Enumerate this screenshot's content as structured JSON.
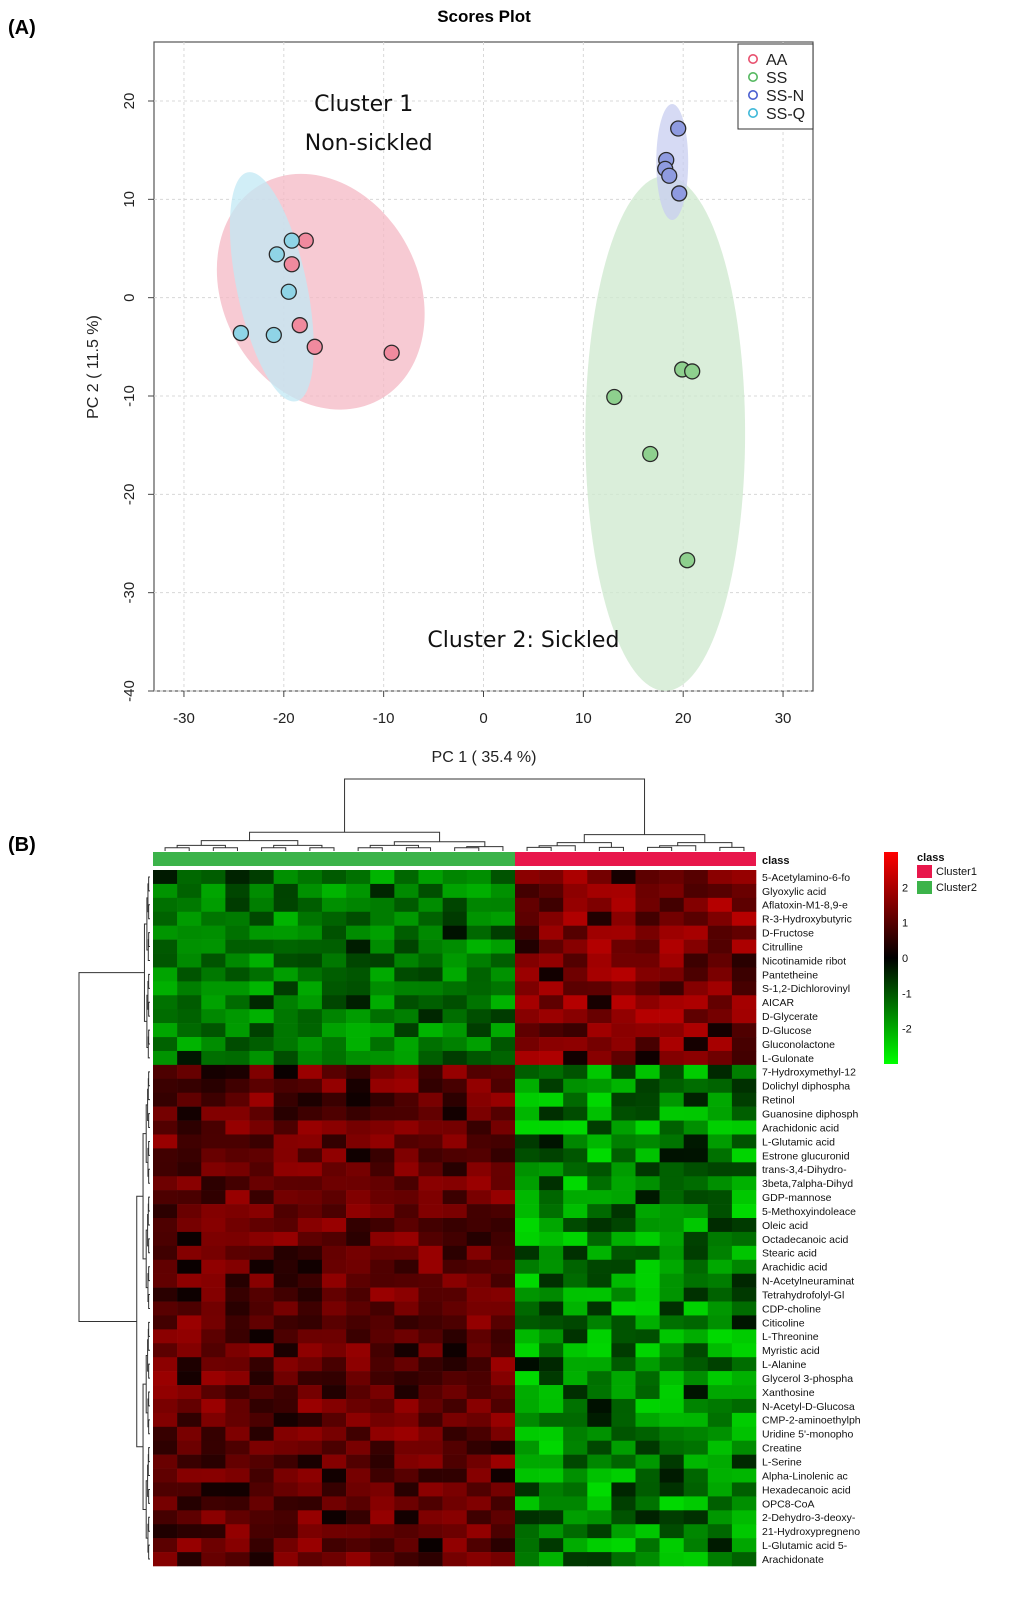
{
  "panel_a_label": "(A)",
  "panel_b_label": "(B)",
  "chart_data": [
    {
      "type": "scatter",
      "title": "Scores Plot",
      "xlabel": "PC 1 ( 35.4 %)",
      "ylabel": "PC 2 ( 11.5 %)",
      "xlim": [
        -33,
        33
      ],
      "ylim": [
        -40,
        26
      ],
      "xticks": [
        -30,
        -20,
        -10,
        0,
        10,
        20,
        30
      ],
      "yticks": [
        -40,
        -30,
        -20,
        -10,
        0,
        10,
        20
      ],
      "grid": true,
      "legend": "top-right",
      "annotations": [
        {
          "text": "Cluster 1",
          "x": -12,
          "y": 19
        },
        {
          "text": "Non-sickled",
          "x": -11.5,
          "y": 15
        },
        {
          "text": "Cluster 2: Sickled",
          "x": 4,
          "y": -35.5
        }
      ],
      "series": [
        {
          "name": "AA",
          "color": "#e8506e",
          "fill": "#f08a9e",
          "ellipse_fill": "#f4b8c4",
          "ellipse": {
            "cx": -16.3,
            "cy": 0.6,
            "rx": 9.8,
            "ry": 12.5,
            "angle_deg": -28
          },
          "points": [
            [
              -17.8,
              5.8
            ],
            [
              -19.2,
              3.4
            ],
            [
              -18.4,
              -2.8
            ],
            [
              -16.9,
              -5.0
            ],
            [
              -9.2,
              -5.6
            ]
          ]
        },
        {
          "name": "SS",
          "color": "#55b860",
          "fill": "#8ed08e",
          "ellipse_fill": "#cde8cd",
          "ellipse": {
            "cx": 18.2,
            "cy": -13.8,
            "rx": 8.0,
            "ry": 26.2,
            "angle_deg": 0
          },
          "points": [
            [
              19.9,
              -7.3
            ],
            [
              20.9,
              -7.5
            ],
            [
              13.1,
              -10.1
            ],
            [
              16.7,
              -15.9
            ],
            [
              20.4,
              -26.7
            ]
          ]
        },
        {
          "name": "SS-N",
          "color": "#4a5fd0",
          "fill": "#8f9be0",
          "ellipse_fill": "#c8cdf0",
          "ellipse": {
            "cx": 18.9,
            "cy": 13.8,
            "rx": 1.6,
            "ry": 5.9,
            "angle_deg": 0
          },
          "points": [
            [
              19.5,
              17.2
            ],
            [
              18.3,
              14.0
            ],
            [
              18.2,
              13.1
            ],
            [
              18.6,
              12.4
            ],
            [
              19.6,
              10.6
            ]
          ]
        },
        {
          "name": "SS-Q",
          "color": "#3fb8d8",
          "fill": "#8fd4e6",
          "ellipse_fill": "#c2e8f4",
          "ellipse": {
            "cx": -21.2,
            "cy": 1.1,
            "rx": 3.5,
            "ry": 11.9,
            "angle_deg": -12
          },
          "points": [
            [
              -19.2,
              5.8
            ],
            [
              -20.7,
              4.4
            ],
            [
              -19.5,
              0.6
            ],
            [
              -24.3,
              -3.6
            ],
            [
              -21.0,
              -3.8
            ]
          ]
        }
      ]
    },
    {
      "type": "heatmap",
      "class_label": "class",
      "legend_title": "class",
      "classes": [
        {
          "name": "Cluster1",
          "color": "#e8174b"
        },
        {
          "name": "Cluster2",
          "color": "#3cb34a"
        }
      ],
      "color_scale": {
        "min": -3,
        "max": 3,
        "ticks": [
          2,
          1,
          0,
          -1,
          -2
        ],
        "low": "#00ff00",
        "mid": "#000000",
        "high": "#ff0000"
      },
      "n_cluster2_samples": 15,
      "n_cluster1_samples": 10,
      "rows": [
        "5-Acetylamino-6-fo",
        "Glyoxylic acid",
        "Aflatoxin-M1-8,9-e",
        "R-3-Hydroxybutyric",
        "D-Fructose",
        "Citrulline",
        "Nicotinamide ribot",
        "Pantetheine",
        "S-1,2-Dichlorovinyl",
        "AICAR",
        "D-Glycerate",
        "D-Glucose",
        "Gluconolactone",
        "L-Gulonate",
        "7-Hydroxymethyl-12",
        "Dolichyl diphospha",
        "Retinol",
        "Guanosine diphosph",
        "Arachidonic acid",
        "L-Glutamic acid",
        "Estrone glucuronid",
        "trans-3,4-Dihydro-",
        "3beta,7alpha-Dihyd",
        "GDP-mannose",
        "5-Methoxyindoleace",
        "Oleic acid",
        "Octadecanoic acid",
        "Stearic acid",
        "Arachidic acid",
        "N-Acetylneuraminat",
        "Tetrahydrofolyl-Gl",
        "CDP-choline",
        "Citicoline",
        "L-Threonine",
        "Myristic acid",
        "L-Alanine",
        "Glycerol 3-phospha",
        "Xanthosine",
        "N-Acetyl-D-Glucosa",
        "CMP-2-aminoethylph",
        "Uridine 5'-monopho",
        "Creatine",
        "L-Serine",
        "Alpha-Linolenic ac",
        "Hexadecanoic acid",
        "OPC8-CoA",
        "2-Dehydro-3-deoxy-",
        "21-Hydroxypregneno",
        "L-Glutamic acid 5-",
        "Arachidonate"
      ]
    }
  ]
}
